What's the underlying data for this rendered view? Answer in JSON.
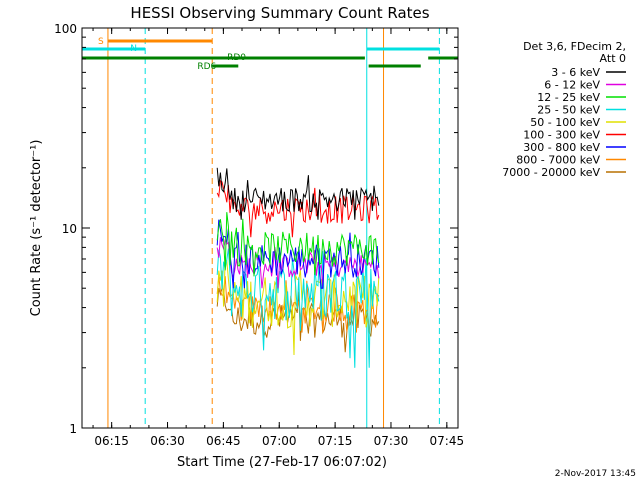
{
  "chart_data": {
    "type": "line",
    "title": "HESSI Observing Summary Count Rates",
    "xlabel": "Start Time (27-Feb-17 06:07:02)",
    "ylabel": "Count Rate (s⁻¹ detector⁻¹)",
    "y_scale": "log",
    "ylim": [
      1,
      100
    ],
    "xlim": [
      "06:07:02",
      "07:48:00"
    ],
    "x_ticks": [
      "06:15",
      "06:30",
      "06:45",
      "07:00",
      "07:15",
      "07:30",
      "07:45"
    ],
    "y_ticks": [
      "1",
      "10",
      "100"
    ],
    "data_span": [
      "06:43:20",
      "07:27:00"
    ],
    "legend": {
      "placement": "right",
      "header": [
        "Det 3,6, FDecim 2,",
        "Att 0"
      ],
      "entries": [
        {
          "label": "3 - 6 keV",
          "color": "#000000"
        },
        {
          "label": "6 - 12 keV",
          "color": "#e000e0"
        },
        {
          "label": "12 - 25 keV",
          "color": "#00e000"
        },
        {
          "label": "25 - 50 keV",
          "color": "#00e0e0"
        },
        {
          "label": "50 - 100 keV",
          "color": "#e0e000"
        },
        {
          "label": "100 - 300 keV",
          "color": "#ff0000"
        },
        {
          "label": "300 - 800 keV",
          "color": "#0000ff"
        },
        {
          "label": "800 - 7000 keV",
          "color": "#ff8800"
        },
        {
          "label": "7000 - 20000 keV",
          "color": "#b87000"
        }
      ]
    },
    "series": [
      {
        "name": "3 - 6 keV",
        "color": "#000000",
        "level": 14,
        "range": [
          11,
          20
        ]
      },
      {
        "name": "100 - 300 keV",
        "color": "#ff0000",
        "level": 12.5,
        "range": [
          9,
          18
        ]
      },
      {
        "name": "12 - 25 keV",
        "color": "#00e000",
        "level": 8,
        "range": [
          5,
          12
        ]
      },
      {
        "name": "300 - 800 keV",
        "color": "#0000ff",
        "level": 7,
        "range": [
          5,
          11
        ]
      },
      {
        "name": "6 - 12 keV",
        "color": "#e000e0",
        "level": 6.5,
        "range": [
          5,
          9
        ]
      },
      {
        "name": "25 - 50 keV",
        "color": "#00e0e0",
        "level": 5,
        "range": [
          2,
          9
        ]
      },
      {
        "name": "50 - 100 keV",
        "color": "#e0e000",
        "level": 4.5,
        "range": [
          2,
          8
        ]
      },
      {
        "name": "800 - 7000 keV",
        "color": "#ff8800",
        "level": 4,
        "range": [
          3,
          6
        ]
      },
      {
        "name": "7000 - 20000 keV",
        "color": "#b87000",
        "level": 3.5,
        "range": [
          2,
          5
        ]
      }
    ],
    "vertical_markers": [
      {
        "time": "06:14:00",
        "color": "#ff8800",
        "style": "solid"
      },
      {
        "time": "06:24:00",
        "color": "#00e0e0",
        "style": "dashed"
      },
      {
        "time": "06:42:00",
        "color": "#ff8800",
        "style": "dashed"
      },
      {
        "time": "07:23:30",
        "color": "#00e0e0",
        "style": "solid"
      },
      {
        "time": "07:28:00",
        "color": "#ff8800",
        "style": "solid"
      },
      {
        "time": "07:43:00",
        "color": "#00e0e0",
        "style": "dashed"
      }
    ],
    "flag_bars": [
      {
        "label": "S",
        "color": "#ff8800",
        "segments": [
          [
            "06:14:00",
            "06:42:00"
          ]
        ]
      },
      {
        "label": "N",
        "color": "#00e0e0",
        "segments": [
          [
            "06:07:02",
            "06:24:00"
          ],
          [
            "07:23:30",
            "07:43:00"
          ]
        ]
      },
      {
        "label": "RD0",
        "color": "#008000",
        "segments": [
          [
            "06:07:02",
            "07:23:00"
          ],
          [
            "07:40:00",
            "07:48:00"
          ]
        ]
      },
      {
        "label": "RD6",
        "color": "#008000",
        "segments": [
          [
            "06:42:00",
            "06:49:00"
          ],
          [
            "07:24:00",
            "07:38:00"
          ]
        ]
      }
    ]
  },
  "footer": {
    "date": "2-Nov-2017 13:45"
  }
}
